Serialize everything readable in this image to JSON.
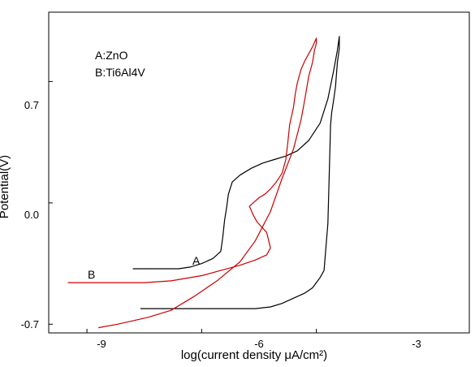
{
  "chart_data": {
    "type": "line",
    "xlabel": "log(current density μA/cm²)",
    "ylabel": "Potential(V)",
    "xlim": [
      -10.0,
      1.0
    ],
    "ylim": [
      -0.75,
      1.1
    ],
    "xticks": [
      {
        "value": -9,
        "label": "-9"
      },
      {
        "value": -6,
        "label": "-6"
      },
      {
        "value": -3,
        "label": "-3"
      }
    ],
    "yticks": [
      {
        "value": 0.7,
        "label": "0.7"
      },
      {
        "value": 0.0,
        "label": "0.0"
      },
      {
        "value": -0.7,
        "label": "-0.7"
      }
    ],
    "legend": [
      "A:ZnO",
      "B:Ti6Al4V"
    ],
    "series": [
      {
        "id": "A",
        "label": "A",
        "color": "#000000",
        "x": [
          -7.8,
          -7.3,
          -6.8,
          -6.6,
          -6.3,
          -6.0,
          -5.7,
          -5.5,
          -5.45,
          -5.4,
          -5.35,
          -5.3,
          -5.2,
          -5.0,
          -4.7,
          -4.4,
          -4.1,
          -3.8,
          -3.5,
          -3.2,
          -2.9,
          -2.7,
          -2.55,
          -2.45,
          -2.4,
          -2.4,
          -2.45,
          -2.5,
          -2.55,
          -2.6,
          -2.63,
          -2.65,
          -2.7,
          -2.8,
          -2.9,
          -3.0,
          -3.1,
          -3.3,
          -3.6,
          -3.9,
          -4.2,
          -4.6,
          -5.0,
          -5.5,
          -6.0,
          -6.4,
          -6.7,
          -7.0,
          -7.3,
          -7.6
        ],
        "y": [
          -0.38,
          -0.38,
          -0.38,
          -0.38,
          -0.37,
          -0.35,
          -0.32,
          -0.28,
          -0.2,
          -0.1,
          -0.03,
          0.05,
          0.12,
          0.16,
          0.2,
          0.23,
          0.25,
          0.27,
          0.3,
          0.36,
          0.46,
          0.6,
          0.76,
          0.88,
          0.96,
          0.89,
          0.81,
          0.67,
          0.59,
          0.52,
          0.45,
          0.27,
          -0.12,
          -0.39,
          -0.43,
          -0.46,
          -0.49,
          -0.52,
          -0.55,
          -0.58,
          -0.6,
          -0.61,
          -0.61,
          -0.61,
          -0.61,
          -0.61,
          -0.61,
          -0.61,
          -0.61,
          -0.61
        ]
      },
      {
        "id": "B",
        "label": "B",
        "color": "#cc0000",
        "x": [
          -9.5,
          -8.5,
          -7.5,
          -6.8,
          -6.0,
          -5.5,
          -5.0,
          -4.6,
          -4.3,
          -4.2,
          -4.3,
          -4.55,
          -4.65,
          -4.75,
          -4.6,
          -4.5,
          -4.35,
          -4.2,
          -4.05,
          -3.9,
          -3.8,
          -3.75,
          -3.7,
          -3.6,
          -3.55,
          -3.5,
          -3.45,
          -3.4,
          -3.3,
          -3.2,
          -3.1,
          -3.0,
          -3.0,
          -3.05,
          -3.1,
          -3.2,
          -3.3,
          -3.4,
          -3.6,
          -3.9,
          -4.2,
          -4.6,
          -5.0,
          -5.6,
          -6.2,
          -6.8,
          -7.4,
          -7.8,
          -8.2,
          -8.7
        ],
        "y": [
          -0.46,
          -0.46,
          -0.46,
          -0.45,
          -0.42,
          -0.39,
          -0.36,
          -0.33,
          -0.3,
          -0.26,
          -0.17,
          -0.11,
          -0.07,
          -0.02,
          0.01,
          0.03,
          0.05,
          0.08,
          0.12,
          0.17,
          0.25,
          0.34,
          0.45,
          0.55,
          0.63,
          0.69,
          0.73,
          0.77,
          0.82,
          0.86,
          0.9,
          0.95,
          0.92,
          0.88,
          0.81,
          0.73,
          0.6,
          0.48,
          0.31,
          0.14,
          -0.05,
          -0.22,
          -0.34,
          -0.45,
          -0.54,
          -0.62,
          -0.66,
          -0.68,
          -0.7,
          -0.72
        ]
      }
    ],
    "curve_labels": [
      {
        "text": "A",
        "x": -7.2,
        "y": -0.28
      },
      {
        "text": "B",
        "x": -9.15,
        "y": -0.38
      }
    ]
  }
}
